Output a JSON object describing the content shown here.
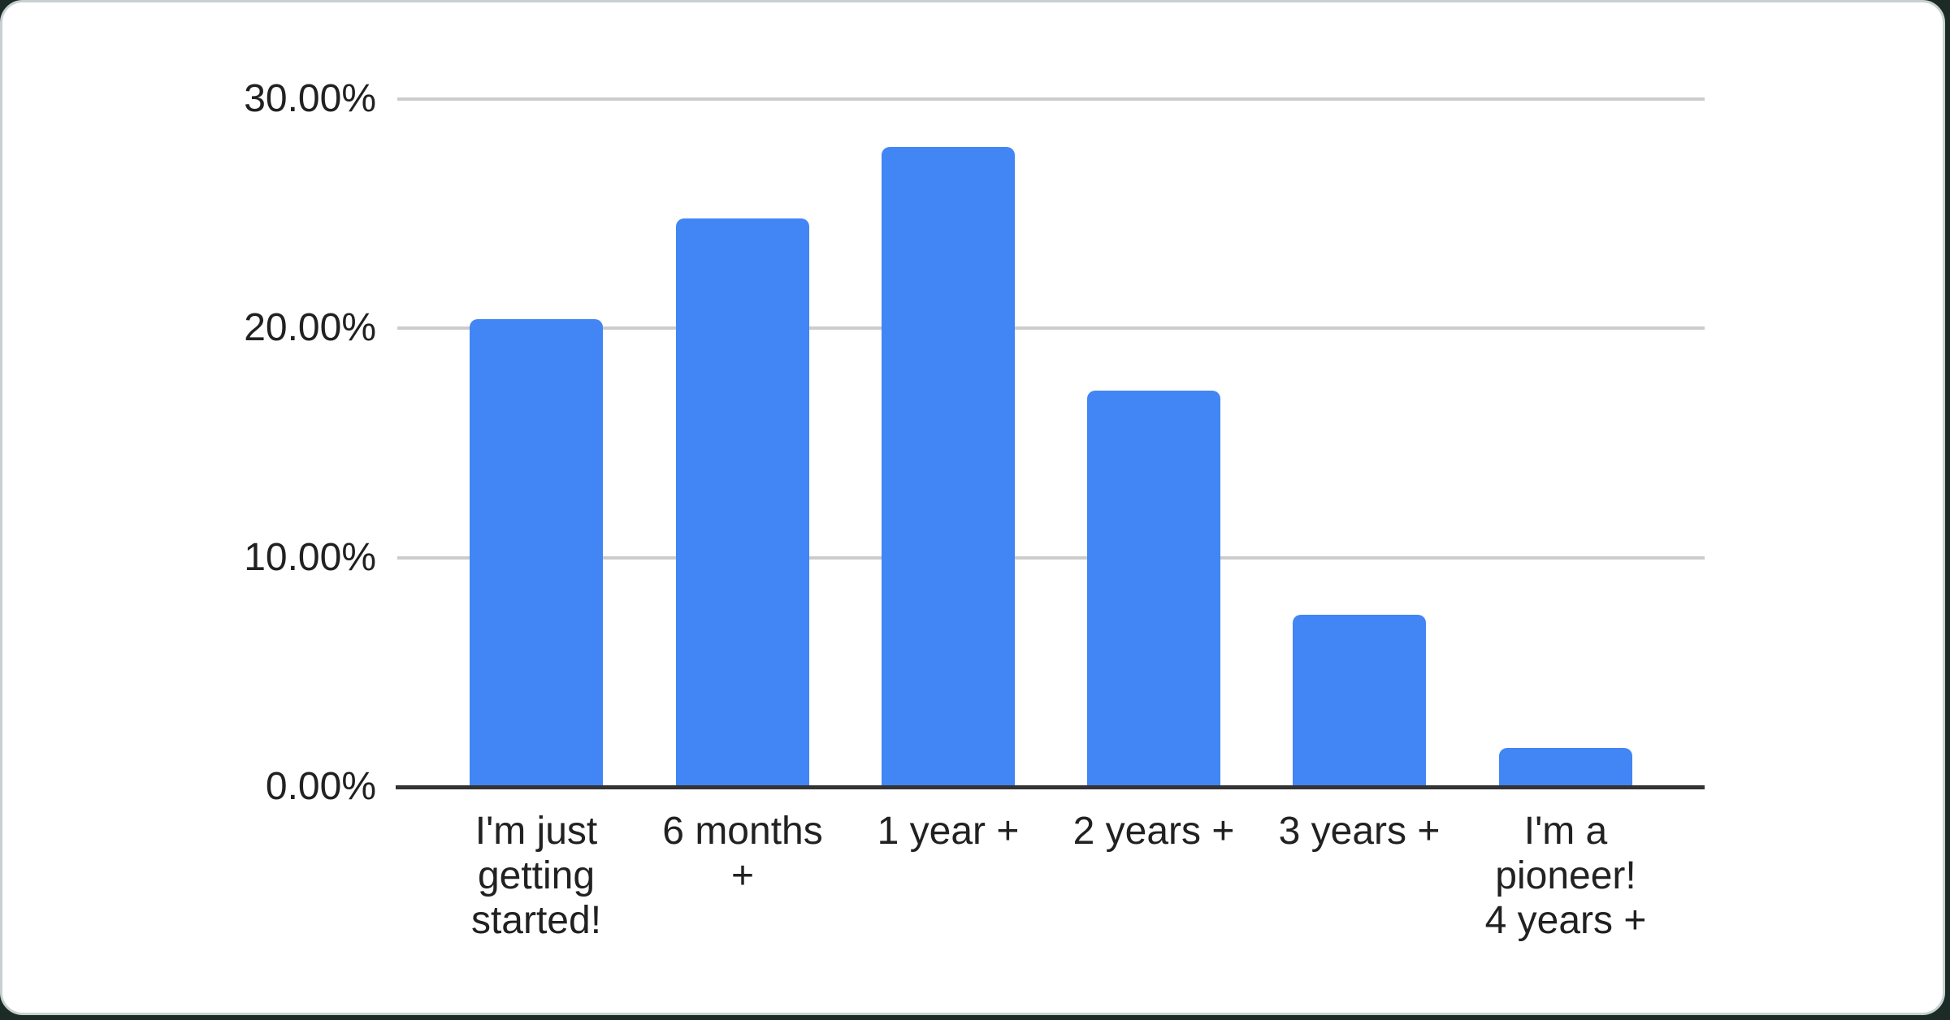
{
  "page": {
    "outside_background": "#1d2b26",
    "card_background": "#ffffff",
    "card_border_color": "#c8d1d1"
  },
  "chart_data": {
    "type": "bar",
    "title": "",
    "xlabel": "",
    "ylabel": "",
    "categories": [
      "I'm just getting started!",
      "6 months +",
      "1 year +",
      "2 years +",
      "3 years +",
      "I'm a pioneer! 4 years +"
    ],
    "category_label_lines": [
      [
        "I'm just",
        "getting",
        "started!"
      ],
      [
        "6 months",
        "+"
      ],
      [
        "1 year +"
      ],
      [
        "2 years +"
      ],
      [
        "3 years +"
      ],
      [
        "I'm a",
        "pioneer!",
        "4 years +"
      ]
    ],
    "values": [
      20.4,
      24.8,
      27.9,
      17.3,
      7.5,
      1.7
    ],
    "value_unit": "%",
    "ylim": [
      0,
      30
    ],
    "y_ticks": [
      {
        "value": 0,
        "label": "0.00%"
      },
      {
        "value": 10,
        "label": "10.00%"
      },
      {
        "value": 20,
        "label": "20.00%"
      },
      {
        "value": 30,
        "label": "30.00%"
      }
    ],
    "grid": true,
    "legend": "none",
    "bar_color": "#4285f4",
    "gridline_color": "#cccccc",
    "axis_line_color": "#333333",
    "label_color": "#212121"
  }
}
